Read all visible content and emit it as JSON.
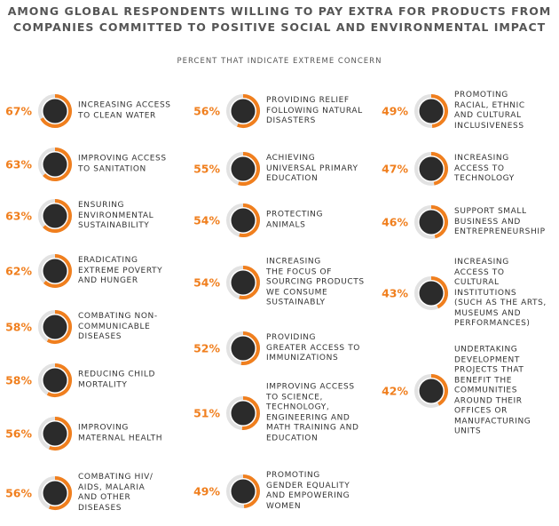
{
  "chart_data": {
    "type": "donut",
    "title": "AMONG GLOBAL RESPONDENTS WILLING TO PAY EXTRA FOR PRODUCTS FROM\nCOMPANIES COMMITTED TO POSITIVE SOCIAL AND ENVIRONMENTAL IMPACT",
    "subtitle": "PERCENT THAT INDICATE EXTREME CONCERN",
    "color": "#f07f1e",
    "categories": [
      "INCREASING ACCESS\nTO CLEAN WATER",
      "IMPROVING ACCESS\nTO SANITATION",
      "ENSURING\nENVIRONMENTAL\nSUSTAINABILITY",
      "ERADICATING\nEXTREME POVERTY\nAND HUNGER",
      "COMBATING NON-\nCOMMUNICABLE\nDISEASES",
      "REDUCING CHILD\nMORTALITY",
      "IMPROVING\nMATERNAL HEALTH",
      "COMBATING HIV/\nAIDS, MALARIA\nAND OTHER\nDISEASES",
      "PROVIDING RELIEF\nFOLLOWING NATURAL\nDISASTERS",
      "ACHIEVING\nUNIVERSAL PRIMARY\nEDUCATION",
      "PROTECTING\nANIMALS",
      "INCREASING\nTHE FOCUS OF\nSOURCING PRODUCTS\nWE CONSUME\nSUSTAINABLY",
      "PROVIDING\nGREATER ACCESS TO\nIMMUNIZATIONS",
      "IMPROVING ACCESS\nTO SCIENCE,\nTECHNOLOGY,\nENGINEERING AND\nMATH TRAINING AND\nEDUCATION",
      "PROMOTING\nGENDER EQUALITY\nAND EMPOWERING\nWOMEN",
      "PROMOTING\nRACIAL, ETHNIC\nAND CULTURAL\nINCLUSIVENESS",
      "INCREASING\nACCESS TO\nTECHNOLOGY",
      "SUPPORT SMALL\nBUSINESS AND\nENTREPRENEURSHIP",
      "INCREASING\nACCESS TO\nCULTURAL\nINSTITUTIONS\n(SUCH AS THE ARTS,\nMUSEUMS AND\nPERFORMANCES)",
      "UNDERTAKING\nDEVELOPMENT\nPROJECTS THAT\nBENEFIT THE\nCOMMUNITIES\nAROUND THEIR\nOFFICES OR\nMANUFACTURING\nUNITS"
    ],
    "values": [
      67,
      63,
      63,
      62,
      58,
      58,
      56,
      56,
      56,
      55,
      54,
      54,
      52,
      51,
      49,
      49,
      47,
      46,
      43,
      42
    ],
    "value_labels": [
      "67%",
      "63%",
      "63%",
      "62%",
      "58%",
      "58%",
      "56%",
      "56%",
      "56%",
      "55%",
      "54%",
      "54%",
      "52%",
      "51%",
      "49%",
      "49%",
      "47%",
      "46%",
      "43%",
      "42%"
    ]
  }
}
